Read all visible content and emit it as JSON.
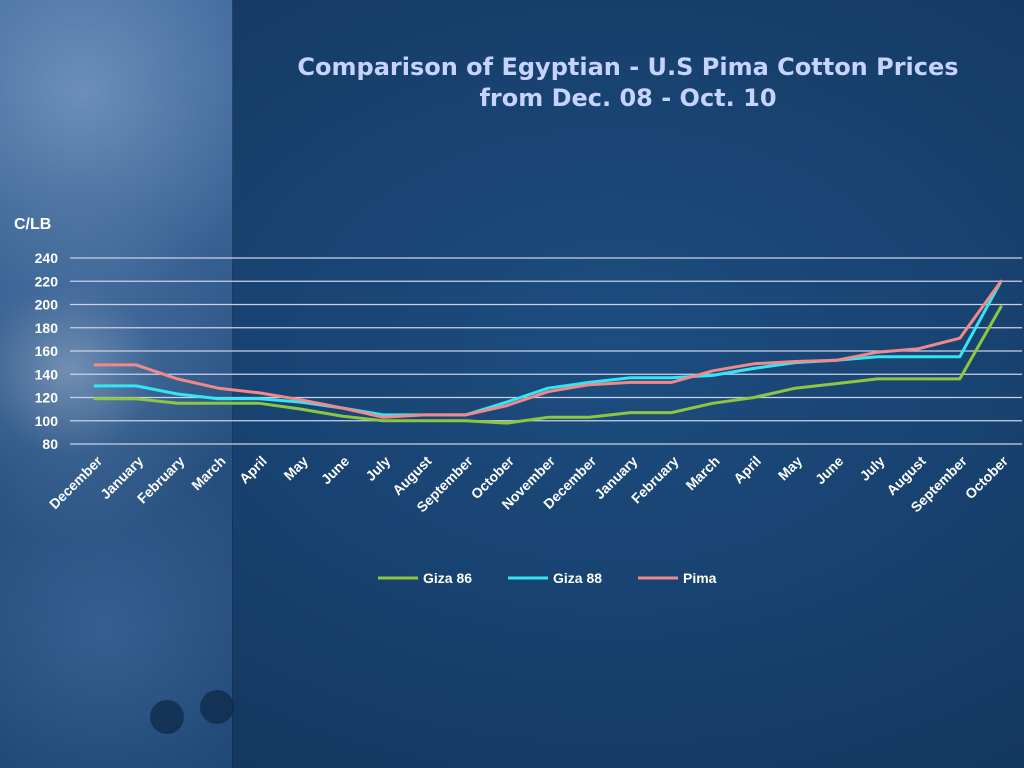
{
  "slide": {
    "title_line1": "Comparison of Egyptian - U.S Pima Cotton Prices",
    "title_line2": "from Dec. 08 - Oct. 10"
  },
  "colors": {
    "background": "#173f6c",
    "gridline": "#c9d2e8",
    "text": "#ffffff",
    "title": "#c6d3ff"
  },
  "chart_data": {
    "type": "line",
    "title": "Comparison of Egyptian - U.S Pima Cotton Prices from Dec. 08 - Oct. 10",
    "ylabel": "C/LB",
    "xlabel": "",
    "ylim": [
      80,
      240
    ],
    "yticks": [
      80,
      100,
      120,
      140,
      160,
      180,
      200,
      220,
      240
    ],
    "grid": true,
    "legend_position": "bottom",
    "categories": [
      "December",
      "January",
      "February",
      "March",
      "April",
      "May",
      "June",
      "July",
      "August",
      "September",
      "October",
      "November",
      "December",
      "January",
      "February",
      "March",
      "April",
      "May",
      "June",
      "July",
      "August",
      "September",
      "October"
    ],
    "series": [
      {
        "name": "Giza 86",
        "color": "#8dc63f",
        "values": [
          119,
          119,
          115,
          115,
          115,
          110,
          104,
          100,
          100,
          100,
          98,
          103,
          103,
          107,
          107,
          115,
          120,
          128,
          132,
          136,
          136,
          136,
          198
        ]
      },
      {
        "name": "Giza 88",
        "color": "#33e6f5",
        "values": [
          130,
          130,
          123,
          119,
          119,
          116,
          111,
          105,
          105,
          105,
          116,
          128,
          133,
          137,
          137,
          139,
          145,
          150,
          152,
          155,
          155,
          155,
          220
        ]
      },
      {
        "name": "Pima",
        "color": "#f08a8a",
        "values": [
          148,
          148,
          136,
          128,
          124,
          118,
          111,
          103,
          105,
          105,
          113,
          125,
          131,
          133,
          133,
          143,
          149,
          151,
          152,
          159,
          162,
          171,
          220
        ]
      }
    ]
  }
}
